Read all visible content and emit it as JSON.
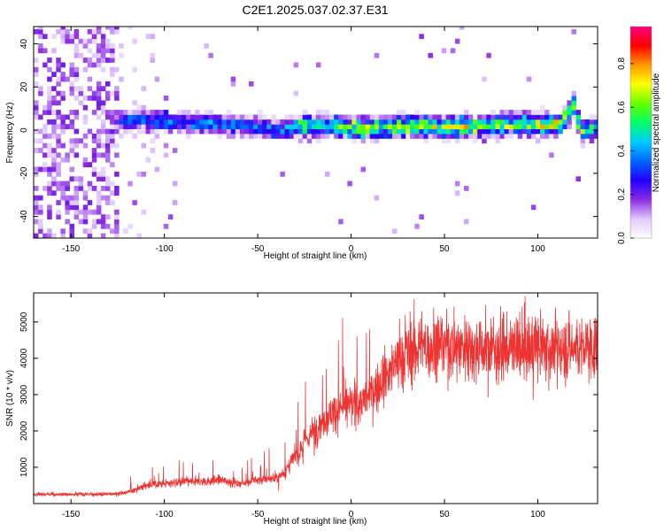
{
  "title": "C2E1.2025.037.02.37.E31",
  "chart_data": [
    {
      "type": "heatmap",
      "xlabel": "Height of straight line (km)",
      "ylabel": "Frequency (Hz)",
      "xlim": [
        -170,
        132
      ],
      "ylim": [
        -50,
        48
      ],
      "xticks": [
        -150,
        -100,
        -50,
        0,
        50,
        100
      ],
      "yticks": [
        -40,
        -20,
        0,
        20,
        40
      ],
      "colorbar": {
        "label": "Normalized spectral amplitude",
        "range": [
          0,
          0.97
        ],
        "ticks": [
          "0.0",
          "0.2",
          "0.4",
          "0.6",
          "0.8"
        ],
        "colors": [
          "#ffffff",
          "#e0c8ff",
          "#8a2be2",
          "#2200ff",
          "#0066ff",
          "#00ccff",
          "#00ff66",
          "#66ff00",
          "#ffff00",
          "#ff9900",
          "#ff0000",
          "#ff0080"
        ]
      },
      "noise_region_x": [
        -170,
        -125
      ],
      "band": [
        [
          -125,
          3,
          0.35
        ],
        [
          -115,
          4,
          0.4
        ],
        [
          -100,
          3,
          0.4
        ],
        [
          -80,
          2,
          0.4
        ],
        [
          -60,
          1,
          0.35
        ],
        [
          -40,
          -1,
          0.4
        ],
        [
          -25,
          1,
          0.55
        ],
        [
          -10,
          1,
          0.6
        ],
        [
          0,
          0,
          0.65
        ],
        [
          10,
          0,
          0.7
        ],
        [
          25,
          1,
          0.7
        ],
        [
          40,
          1,
          0.7
        ],
        [
          50,
          0,
          0.7
        ],
        [
          70,
          1,
          0.7
        ],
        [
          90,
          2,
          0.7
        ],
        [
          110,
          1,
          0.75
        ],
        [
          118,
          10,
          0.7
        ],
        [
          122,
          -2,
          0.6
        ],
        [
          132,
          1,
          0.55
        ]
      ]
    },
    {
      "type": "line",
      "xlabel": "Height of straight line (km)",
      "ylabel": "SNR (10 * v/v)",
      "xlim": [
        -170,
        132
      ],
      "ylim": [
        0,
        5800
      ],
      "xticks": [
        -150,
        -100,
        -50,
        0,
        50,
        100
      ],
      "yticks": [
        1000,
        2000,
        3000,
        4000,
        5000
      ],
      "color": "#ee3333",
      "series": [
        {
          "x": [
            -170,
            -150,
            -130,
            -120,
            -110,
            -100,
            -90,
            -80,
            -70,
            -60,
            -50,
            -40,
            -35,
            -30,
            -25,
            -20,
            -15,
            -10,
            -5,
            0,
            5,
            10,
            15,
            20,
            25,
            30,
            40,
            50,
            60,
            70,
            80,
            90,
            100,
            110,
            120,
            132
          ],
          "y": [
            250,
            250,
            260,
            300,
            500,
            550,
            600,
            600,
            650,
            550,
            650,
            700,
            900,
            1300,
            1700,
            2000,
            2300,
            2500,
            2650,
            2700,
            2800,
            3000,
            3300,
            3600,
            3900,
            4200,
            4350,
            4400,
            4350,
            4300,
            4250,
            4250,
            4300,
            4250,
            4300,
            4300
          ]
        }
      ]
    }
  ]
}
